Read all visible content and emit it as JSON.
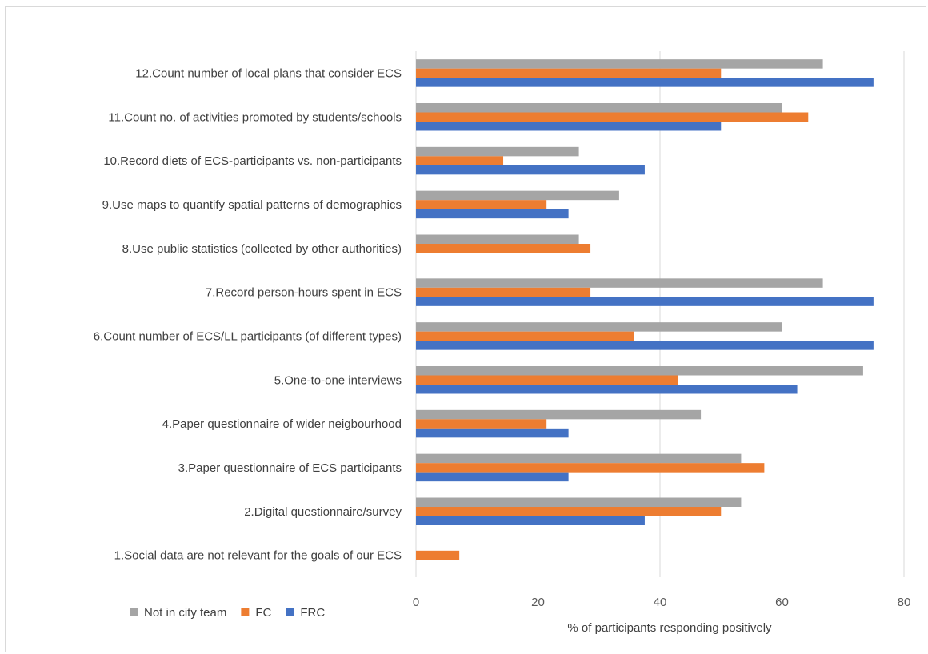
{
  "chart_data": {
    "type": "bar",
    "orientation": "horizontal",
    "title": "",
    "xlabel": "% of participants responding positively",
    "ylabel": "",
    "xlim": [
      0,
      80
    ],
    "xticks": [
      0,
      20,
      40,
      60,
      80
    ],
    "grid": true,
    "legend_position": "bottom-left",
    "categories": [
      "1.Social data are not relevant for the goals of our ECS",
      "2.Digital questionnaire/survey",
      "3.Paper questionnaire of ECS participants",
      "4.Paper questionnaire of wider neigbourhood",
      "5.One-to-one interviews",
      "6.Count number of ECS/LL participants (of different types)",
      "7.Record person-hours spent in ECS",
      "8.Use public statistics (collected by other authorities)",
      "9.Use maps to quantify spatial patterns of demographics",
      "10.Record diets of ECS-participants vs. non-participants",
      "11.Count no. of activities promoted by students/schools",
      "12.Count number of local plans that consider ECS"
    ],
    "series": [
      {
        "name": "Not in city team",
        "color": "#a5a5a5",
        "values": [
          0,
          53.3,
          53.3,
          46.7,
          73.3,
          60,
          66.7,
          26.7,
          33.3,
          26.7,
          60,
          66.7
        ]
      },
      {
        "name": "FC",
        "color": "#ed7d31",
        "values": [
          7.1,
          50,
          57.1,
          21.4,
          42.9,
          35.7,
          28.6,
          28.6,
          21.4,
          14.3,
          64.3,
          50
        ]
      },
      {
        "name": "FRC",
        "color": "#4472c4",
        "values": [
          0,
          37.5,
          25,
          25,
          62.5,
          75,
          75,
          0,
          25,
          37.5,
          50,
          75
        ]
      }
    ]
  }
}
